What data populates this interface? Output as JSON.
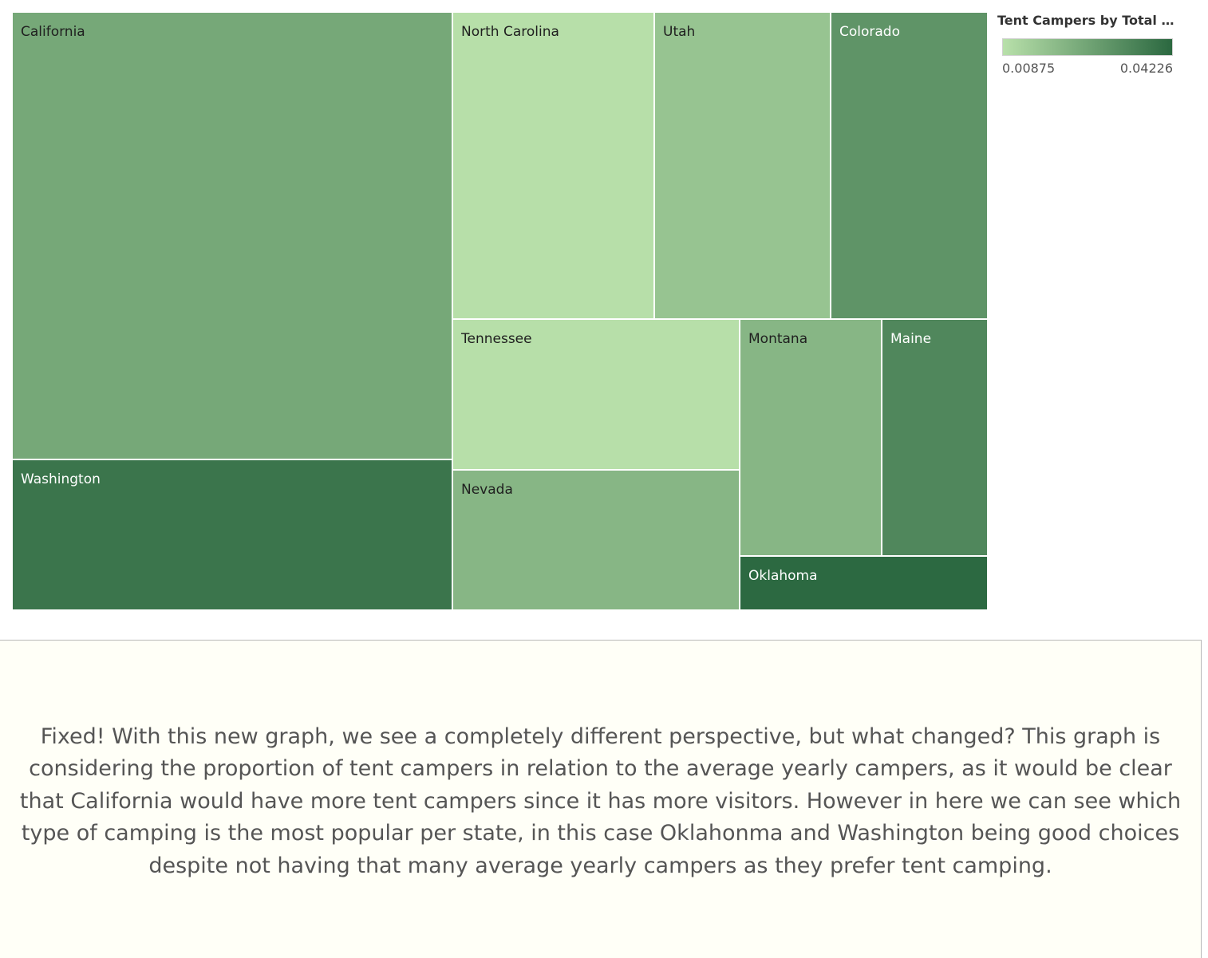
{
  "chart_data": {
    "type": "treemap",
    "measure": "Tent Campers by Total Vi...",
    "color_range": {
      "min_label": "0.00875",
      "max_label": "0.04226",
      "min": 0.00875,
      "max": 0.04226,
      "low_color": "#b8e0aa",
      "high_color": "#2b6840"
    },
    "states": [
      {
        "name": "California",
        "color_value": 0.0245
      },
      {
        "name": "Washington",
        "color_value": 0.0385
      },
      {
        "name": "North Carolina",
        "color_value": 0.009
      },
      {
        "name": "Utah",
        "color_value": 0.0165
      },
      {
        "name": "Colorado",
        "color_value": 0.03
      },
      {
        "name": "Tennessee",
        "color_value": 0.009
      },
      {
        "name": "Nevada",
        "color_value": 0.0205
      },
      {
        "name": "Montana",
        "color_value": 0.0205
      },
      {
        "name": "Maine",
        "color_value": 0.0335
      },
      {
        "name": "Oklahoma",
        "color_value": 0.042
      }
    ]
  },
  "caption": "Fixed! With this new graph, we see a completely different perspective, but what changed? This graph is considering the proportion of tent campers in relation to the average yearly campers, as it would be clear that California would have more tent campers since it has more visitors. However in here we can see which type of camping is the most popular per state, in this case Oklahonma and Washington being good choices despite not having that many average yearly campers as they prefer tent camping."
}
